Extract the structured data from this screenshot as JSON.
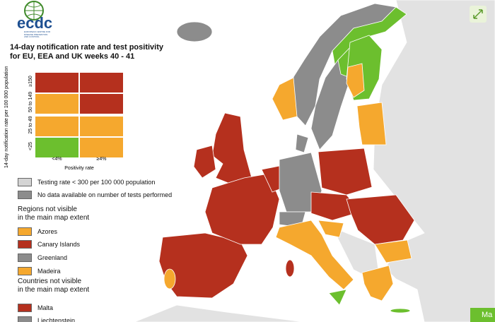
{
  "logo": {
    "text": "ecdc",
    "subtitle": [
      "EUROPEAN CENTRE FOR",
      "DISEASE PREVENTION",
      "AND CONTROL"
    ]
  },
  "title": [
    "14-day notification rate and test positivity",
    "for EU, EEA and UK weeks 40 - 41"
  ],
  "matrix": {
    "y_label": "14-day notification rate per 100 000 population",
    "rows": [
      "≥150",
      "50 to 149",
      "25 to 49",
      "<25"
    ],
    "columns": [
      "<4%",
      "≥4%"
    ],
    "x_label": "Positivity rate",
    "cells": [
      [
        "#b5301e",
        "#b5301e"
      ],
      [
        "#f5a82e",
        "#b5301e"
      ],
      [
        "#f5a82e",
        "#f5a82e"
      ],
      [
        "#6cbf2e",
        "#f5a82e"
      ]
    ]
  },
  "legend": [
    {
      "label": "Testing rate < 300 per 100 000 population",
      "color": "#d4d4d4"
    },
    {
      "label": "No data available on number of tests performed",
      "color": "#8c8c8c"
    }
  ],
  "regions": {
    "heading": [
      "Regions not visible",
      "in the main map extent"
    ],
    "items": [
      {
        "label": "Azores",
        "color": "#f5a82e"
      },
      {
        "label": "Canary Islands",
        "color": "#b5301e"
      },
      {
        "label": "Greenland",
        "color": "#8c8c8c"
      },
      {
        "label": "Madeira",
        "color": "#f5a82e"
      }
    ]
  },
  "countries": {
    "heading": [
      "Countries not visible",
      "in the main map extent"
    ],
    "items": [
      {
        "label": "Malta",
        "color": "#b5301e"
      },
      {
        "label": "Liechtenstein",
        "color": "#8c8c8c"
      }
    ]
  },
  "button": "Ma"
}
